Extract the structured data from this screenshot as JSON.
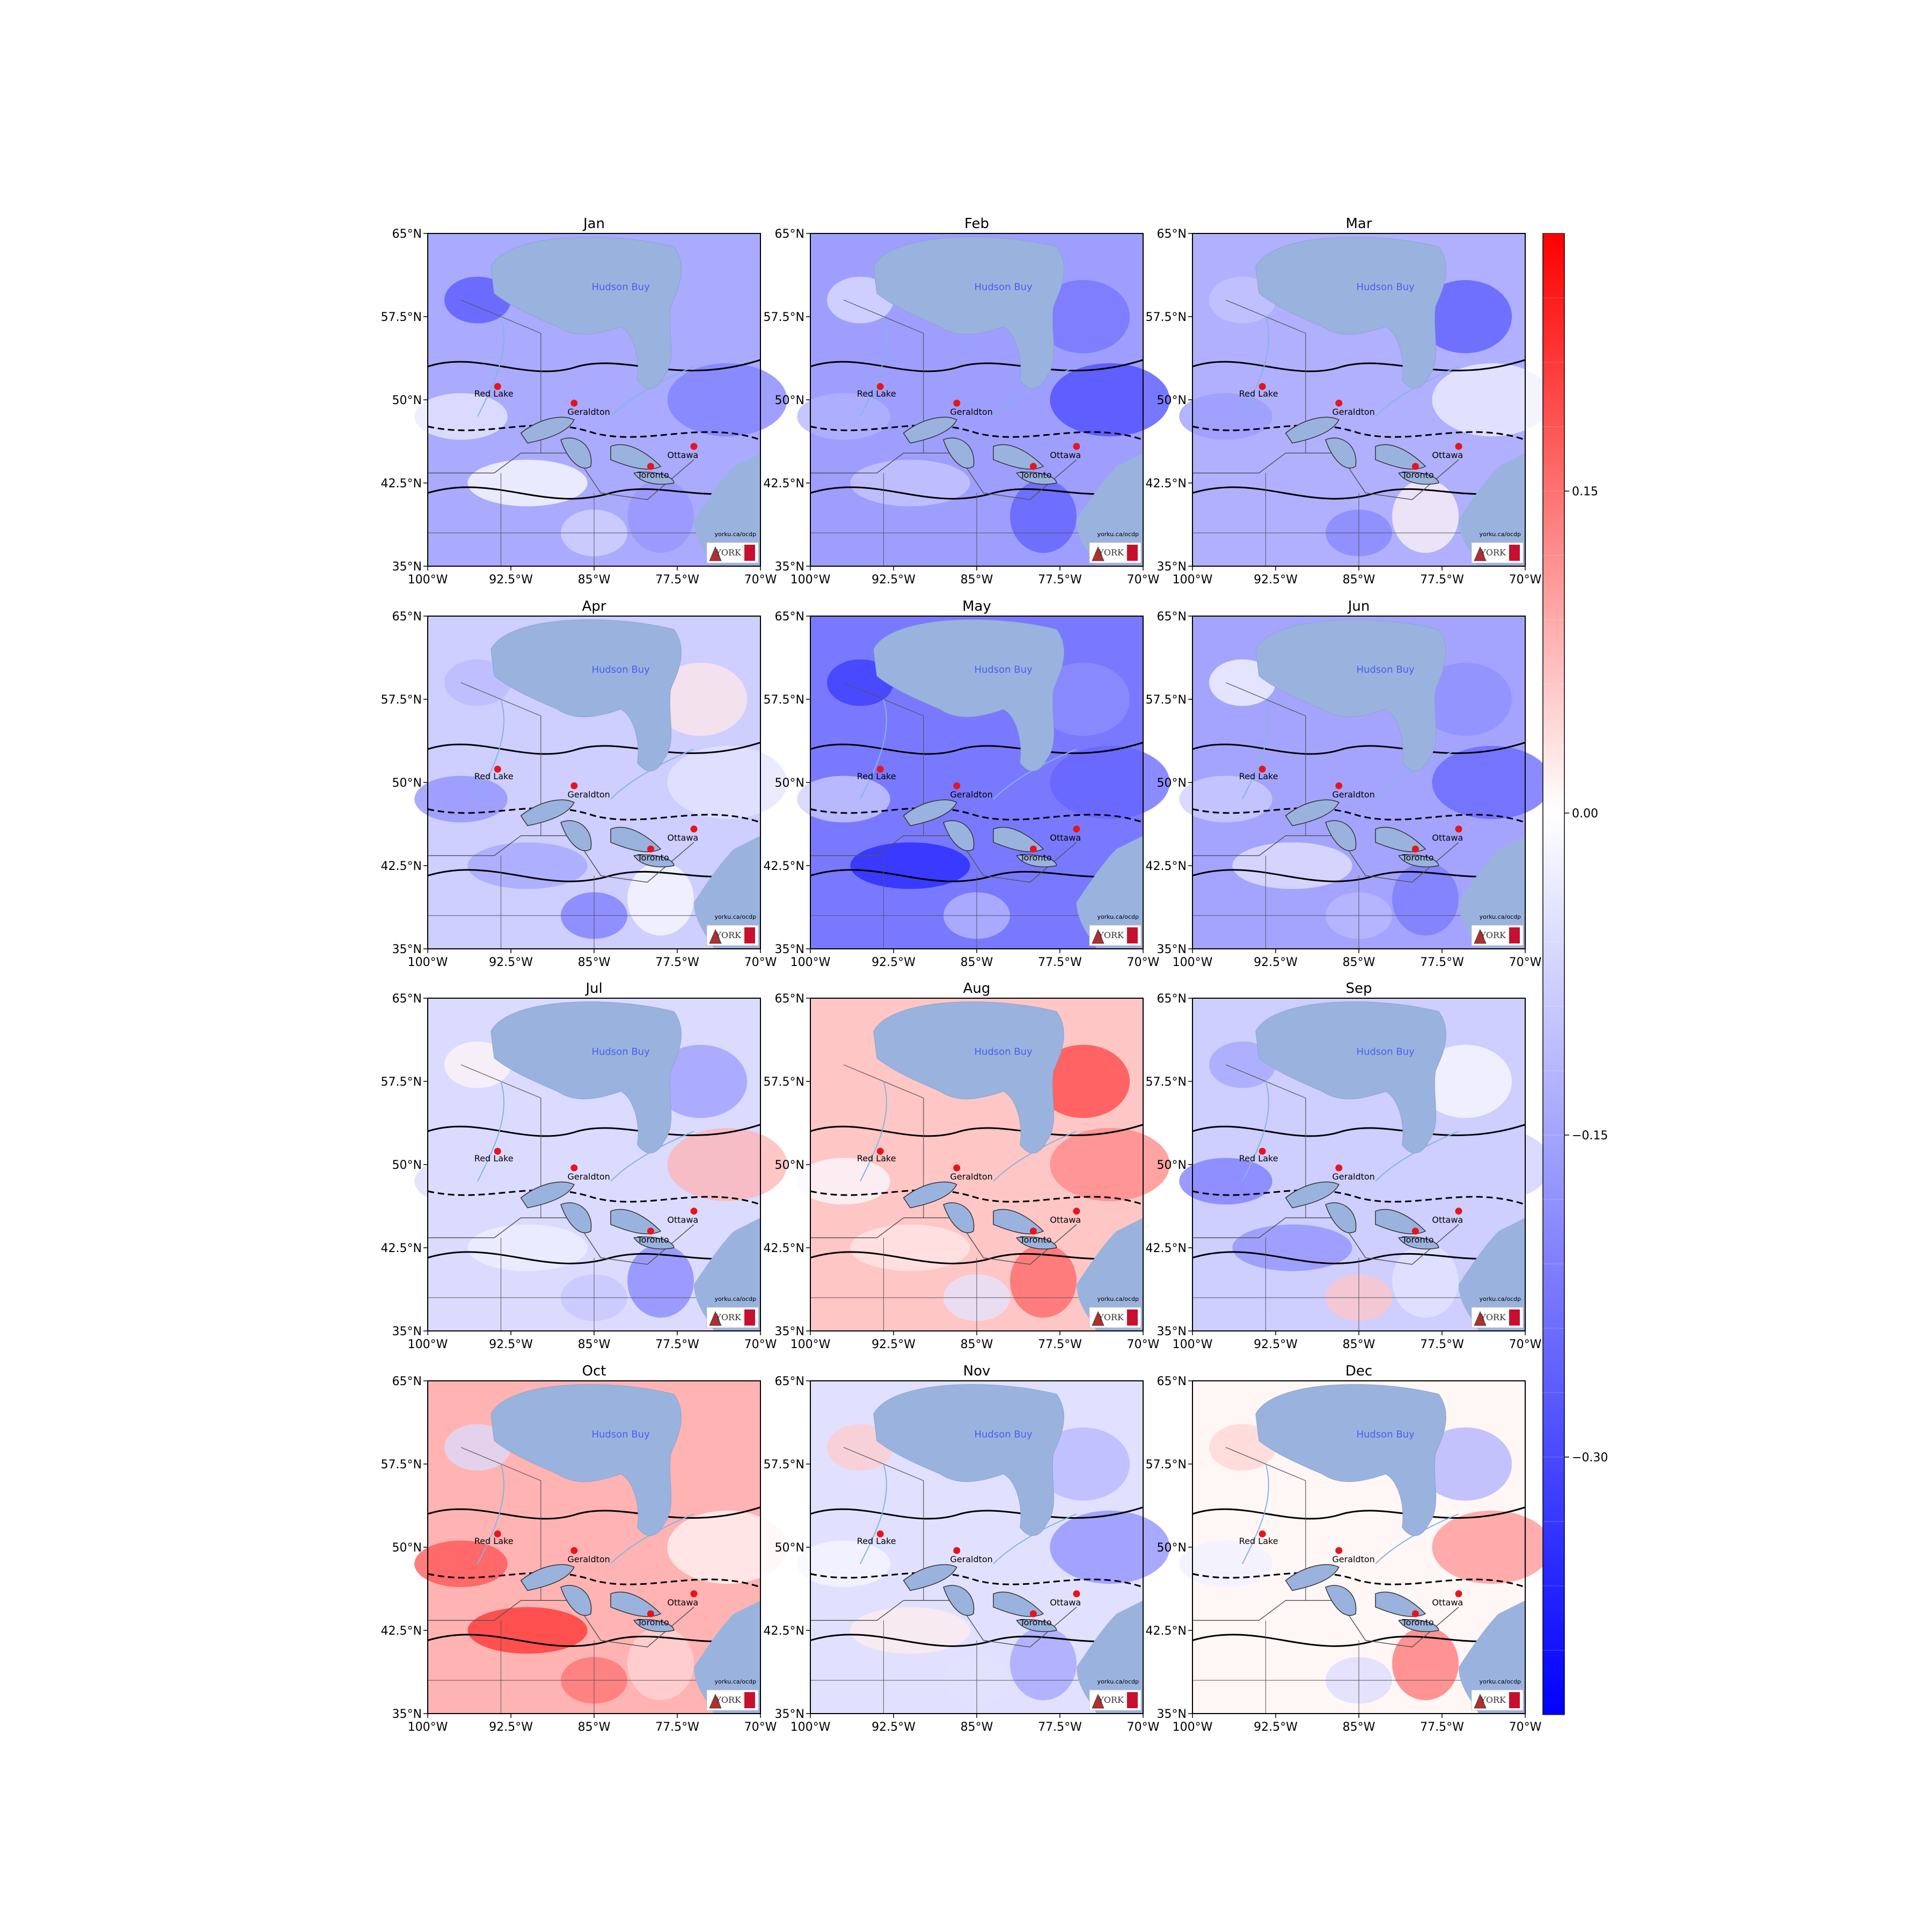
{
  "figure": {
    "panels": [
      {
        "title": "Jan",
        "tint": -0.14
      },
      {
        "title": "Feb",
        "tint": -0.16
      },
      {
        "title": "Mar",
        "tint": -0.13
      },
      {
        "title": "Apr",
        "tint": -0.08
      },
      {
        "title": "May",
        "tint": -0.22
      },
      {
        "title": "Jun",
        "tint": -0.15
      },
      {
        "title": "Jul",
        "tint": -0.06
      },
      {
        "title": "Aug",
        "tint": 0.06
      },
      {
        "title": "Sep",
        "tint": -0.08
      },
      {
        "title": "Oct",
        "tint": 0.08
      },
      {
        "title": "Nov",
        "tint": -0.05
      },
      {
        "title": "Dec",
        "tint": 0.01
      }
    ],
    "lat_ticks": [
      "65°N",
      "57.5°N",
      "50°N",
      "42.5°N",
      "35°N"
    ],
    "lon_ticks": [
      "100°W",
      "92.5°W",
      "85°W",
      "77.5°W",
      "70°W"
    ],
    "bay_label": "Hudson Buy",
    "cities": [
      "Red Lake",
      "Geraldton",
      "Ottawa",
      "Toronto"
    ],
    "credit": "yorku.ca/ocdp",
    "logo_text": "YORK"
  },
  "colorbar": {
    "ticks": [
      "0.15",
      "0.00",
      "−0.15",
      "−0.30"
    ],
    "min": -0.42,
    "max": 0.27,
    "colors": {
      "low": "#0000ff",
      "mid": "#ffffff",
      "high": "#ff0000"
    }
  },
  "colors": {
    "water": "#9ab3de",
    "city_marker": "#e8141c",
    "border": "#555555",
    "river": "#86b4e0"
  }
}
